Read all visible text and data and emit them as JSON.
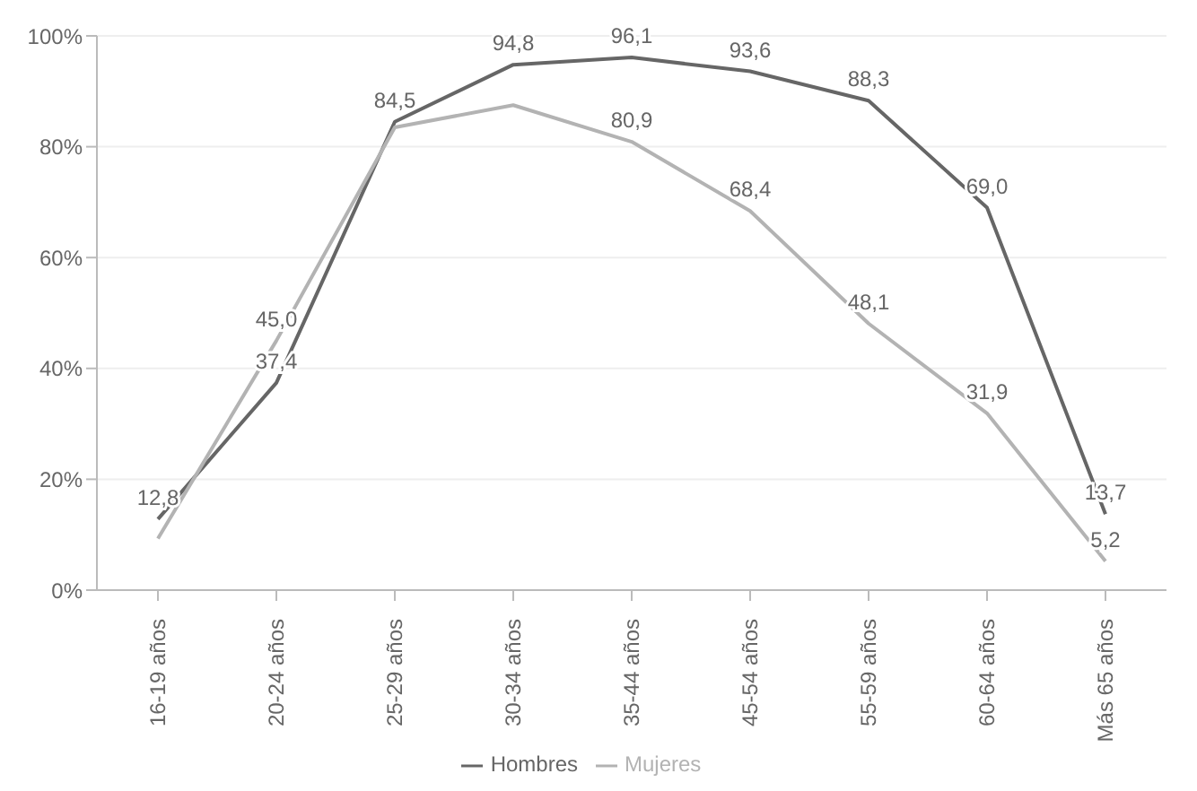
{
  "chart_data": {
    "type": "line",
    "categories": [
      "16-19 años",
      "20-24 años",
      "25-29 años",
      "30-34 años",
      "35-44 años",
      "45-54 años",
      "55-59 años",
      "60-64 años",
      "Más 65 años"
    ],
    "series": [
      {
        "name": "Hombres",
        "color": "#666666",
        "values": [
          12.8,
          37.4,
          84.5,
          94.8,
          96.1,
          93.6,
          88.3,
          69.0,
          13.7
        ],
        "value_labels": [
          "12,8",
          "37,4",
          "84,5",
          "94,8",
          "96,1",
          "93,6",
          "88,3",
          "69,0",
          "13,7"
        ]
      },
      {
        "name": "Mujeres",
        "color": "#b3b3b3",
        "values": [
          9.3,
          45.0,
          83.5,
          87.5,
          80.9,
          68.4,
          48.1,
          31.9,
          5.2
        ],
        "value_labels": [
          null,
          "45,0",
          null,
          null,
          "80,9",
          "68,4",
          "48,1",
          "31,9",
          "5,2"
        ]
      }
    ],
    "ylim": [
      0,
      100
    ],
    "yticks": [
      {
        "value": 0,
        "label": "0%"
      },
      {
        "value": 20,
        "label": "20%"
      },
      {
        "value": 40,
        "label": "40%"
      },
      {
        "value": 60,
        "label": "60%"
      },
      {
        "value": 80,
        "label": "80%"
      },
      {
        "value": 100,
        "label": "100%"
      }
    ],
    "grid": "y",
    "legend": "bottom",
    "marker": "none",
    "line_style": "solid"
  }
}
